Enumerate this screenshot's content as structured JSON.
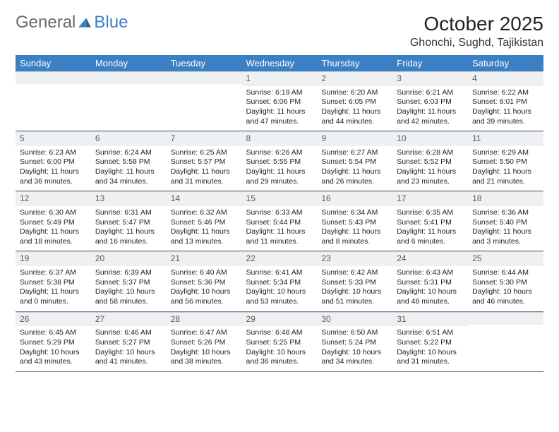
{
  "logo": {
    "part1": "General",
    "part2": "Blue"
  },
  "title": "October 2025",
  "location": "Ghonchi, Sughd, Tajikistan",
  "colors": {
    "header_bg": "#3b7fc4",
    "header_text": "#ffffff",
    "daynum_bg": "#eef0f2",
    "daynum_text": "#5a5a5a",
    "row_border": "#6b7d92",
    "body_text": "#222222",
    "logo_general": "#6a6a6a",
    "logo_blue": "#3b7fc4"
  },
  "typography": {
    "title_fontsize": 28,
    "location_fontsize": 16,
    "dayname_fontsize": 13,
    "body_fontsize": 10.5
  },
  "day_names": [
    "Sunday",
    "Monday",
    "Tuesday",
    "Wednesday",
    "Thursday",
    "Friday",
    "Saturday"
  ],
  "weeks": [
    [
      null,
      null,
      null,
      {
        "n": "1",
        "sr": "6:19 AM",
        "ss": "6:06 PM",
        "dl": "11 hours and 47 minutes."
      },
      {
        "n": "2",
        "sr": "6:20 AM",
        "ss": "6:05 PM",
        "dl": "11 hours and 44 minutes."
      },
      {
        "n": "3",
        "sr": "6:21 AM",
        "ss": "6:03 PM",
        "dl": "11 hours and 42 minutes."
      },
      {
        "n": "4",
        "sr": "6:22 AM",
        "ss": "6:01 PM",
        "dl": "11 hours and 39 minutes."
      }
    ],
    [
      {
        "n": "5",
        "sr": "6:23 AM",
        "ss": "6:00 PM",
        "dl": "11 hours and 36 minutes."
      },
      {
        "n": "6",
        "sr": "6:24 AM",
        "ss": "5:58 PM",
        "dl": "11 hours and 34 minutes."
      },
      {
        "n": "7",
        "sr": "6:25 AM",
        "ss": "5:57 PM",
        "dl": "11 hours and 31 minutes."
      },
      {
        "n": "8",
        "sr": "6:26 AM",
        "ss": "5:55 PM",
        "dl": "11 hours and 29 minutes."
      },
      {
        "n": "9",
        "sr": "6:27 AM",
        "ss": "5:54 PM",
        "dl": "11 hours and 26 minutes."
      },
      {
        "n": "10",
        "sr": "6:28 AM",
        "ss": "5:52 PM",
        "dl": "11 hours and 23 minutes."
      },
      {
        "n": "11",
        "sr": "6:29 AM",
        "ss": "5:50 PM",
        "dl": "11 hours and 21 minutes."
      }
    ],
    [
      {
        "n": "12",
        "sr": "6:30 AM",
        "ss": "5:49 PM",
        "dl": "11 hours and 18 minutes."
      },
      {
        "n": "13",
        "sr": "6:31 AM",
        "ss": "5:47 PM",
        "dl": "11 hours and 16 minutes."
      },
      {
        "n": "14",
        "sr": "6:32 AM",
        "ss": "5:46 PM",
        "dl": "11 hours and 13 minutes."
      },
      {
        "n": "15",
        "sr": "6:33 AM",
        "ss": "5:44 PM",
        "dl": "11 hours and 11 minutes."
      },
      {
        "n": "16",
        "sr": "6:34 AM",
        "ss": "5:43 PM",
        "dl": "11 hours and 8 minutes."
      },
      {
        "n": "17",
        "sr": "6:35 AM",
        "ss": "5:41 PM",
        "dl": "11 hours and 6 minutes."
      },
      {
        "n": "18",
        "sr": "6:36 AM",
        "ss": "5:40 PM",
        "dl": "11 hours and 3 minutes."
      }
    ],
    [
      {
        "n": "19",
        "sr": "6:37 AM",
        "ss": "5:38 PM",
        "dl": "11 hours and 0 minutes."
      },
      {
        "n": "20",
        "sr": "6:39 AM",
        "ss": "5:37 PM",
        "dl": "10 hours and 58 minutes."
      },
      {
        "n": "21",
        "sr": "6:40 AM",
        "ss": "5:36 PM",
        "dl": "10 hours and 56 minutes."
      },
      {
        "n": "22",
        "sr": "6:41 AM",
        "ss": "5:34 PM",
        "dl": "10 hours and 53 minutes."
      },
      {
        "n": "23",
        "sr": "6:42 AM",
        "ss": "5:33 PM",
        "dl": "10 hours and 51 minutes."
      },
      {
        "n": "24",
        "sr": "6:43 AM",
        "ss": "5:31 PM",
        "dl": "10 hours and 48 minutes."
      },
      {
        "n": "25",
        "sr": "6:44 AM",
        "ss": "5:30 PM",
        "dl": "10 hours and 46 minutes."
      }
    ],
    [
      {
        "n": "26",
        "sr": "6:45 AM",
        "ss": "5:29 PM",
        "dl": "10 hours and 43 minutes."
      },
      {
        "n": "27",
        "sr": "6:46 AM",
        "ss": "5:27 PM",
        "dl": "10 hours and 41 minutes."
      },
      {
        "n": "28",
        "sr": "6:47 AM",
        "ss": "5:26 PM",
        "dl": "10 hours and 38 minutes."
      },
      {
        "n": "29",
        "sr": "6:48 AM",
        "ss": "5:25 PM",
        "dl": "10 hours and 36 minutes."
      },
      {
        "n": "30",
        "sr": "6:50 AM",
        "ss": "5:24 PM",
        "dl": "10 hours and 34 minutes."
      },
      {
        "n": "31",
        "sr": "6:51 AM",
        "ss": "5:22 PM",
        "dl": "10 hours and 31 minutes."
      },
      null
    ]
  ],
  "labels": {
    "sunrise": "Sunrise: ",
    "sunset": "Sunset: ",
    "daylight": "Daylight: "
  }
}
